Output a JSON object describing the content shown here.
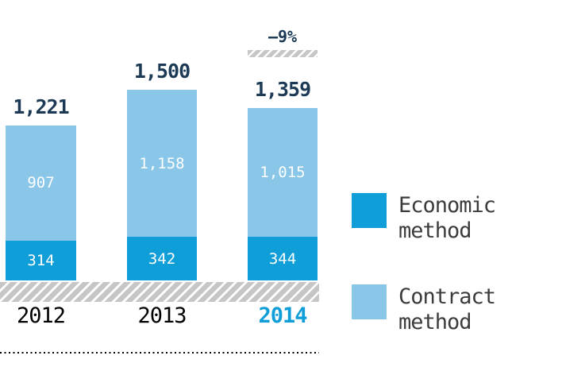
{
  "chart_data": {
    "type": "bar",
    "stacked": true,
    "title": "",
    "xlabel": "",
    "ylabel": "",
    "ylim": [
      0,
      1500
    ],
    "grid": false,
    "legend_position": "right",
    "categories": [
      "2012",
      "2013",
      "2014"
    ],
    "series": [
      {
        "name": "Economic method",
        "color": "#0f9ed8",
        "values": [
          314,
          342,
          344
        ],
        "labels": [
          "314",
          "342",
          "344"
        ]
      },
      {
        "name": "Contract method",
        "color": "#89c6e8",
        "values": [
          907,
          1158,
          1015
        ],
        "labels": [
          "907",
          "1,158",
          "1,015"
        ]
      }
    ],
    "totals": [
      1221,
      1500,
      1359
    ],
    "total_labels": [
      "1,221",
      "1,500",
      "1,359"
    ],
    "annotation": {
      "text": "–9%",
      "over_category": "2014"
    },
    "highlighted_category": "2014"
  },
  "colors": {
    "navy": "#1c3a55",
    "year": "#000000",
    "year_highlight": "#0f9ed8",
    "legend_text": "#3c3c3b",
    "hatch_gray": "#c6c6c6",
    "white": "#ffffff"
  }
}
